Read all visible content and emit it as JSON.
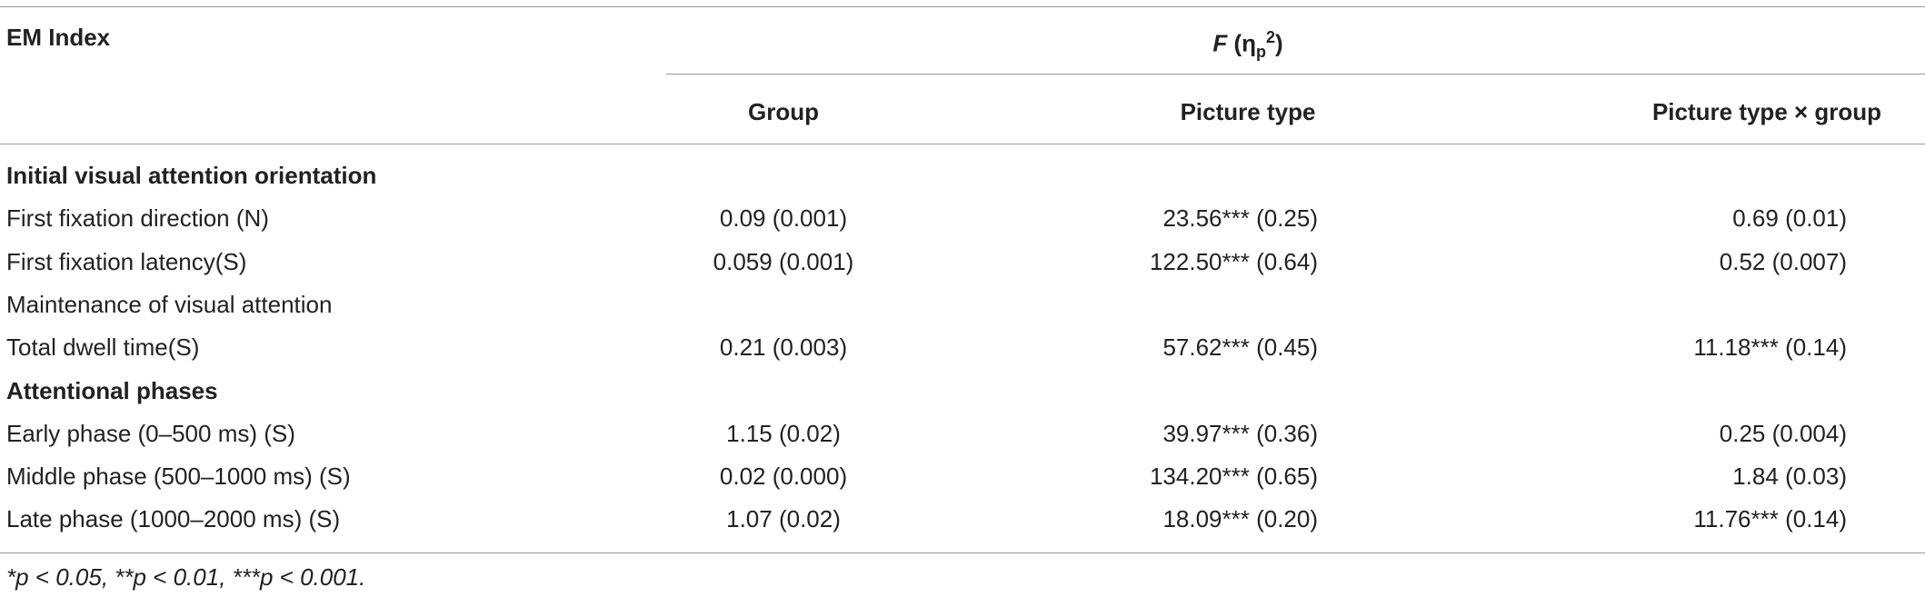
{
  "header": {
    "first_column": "EM Index",
    "spanning_header": {
      "symbol": "F",
      "open": "(η",
      "subscript": "p",
      "superscript": "2",
      "close": ")"
    },
    "columns": [
      "Group",
      "Picture type",
      "Picture type × group"
    ]
  },
  "table": {
    "rows": [
      {
        "bold": true,
        "cells": [
          "Initial visual attention orientation"
        ]
      },
      {
        "bold": false,
        "cells": [
          "First fixation direction (N)",
          "0.09 (0.001)",
          "23.56*** (0.25)",
          "0.69 (0.01)"
        ]
      },
      {
        "bold": false,
        "cells": [
          "First fixation latency(S)",
          "0.059 (0.001)",
          "122.50*** (0.64)",
          "0.52 (0.007)"
        ]
      },
      {
        "bold": false,
        "cells": [
          "Maintenance of visual attention"
        ]
      },
      {
        "bold": false,
        "cells": [
          "Total dwell time(S)",
          "0.21 (0.003)",
          "57.62*** (0.45)",
          "11.18*** (0.14)"
        ]
      },
      {
        "bold": true,
        "cells": [
          "Attentional phases"
        ]
      },
      {
        "bold": false,
        "cells": [
          "Early phase (0–500 ms) (S)",
          "1.15 (0.02)",
          "39.97*** (0.36)",
          "0.25 (0.004)"
        ]
      },
      {
        "bold": false,
        "cells": [
          "Middle phase (500–1000 ms) (S)",
          "0.02 (0.000)",
          "134.20*** (0.65)",
          "1.84 (0.03)"
        ]
      },
      {
        "bold": false,
        "cells": [
          "Late phase (1000–2000 ms) (S)",
          "1.07 (0.02)",
          "18.09*** (0.20)",
          "11.76*** (0.14)"
        ]
      }
    ]
  },
  "footnote": "*p < 0.05, **p < 0.01, ***p < 0.001."
}
